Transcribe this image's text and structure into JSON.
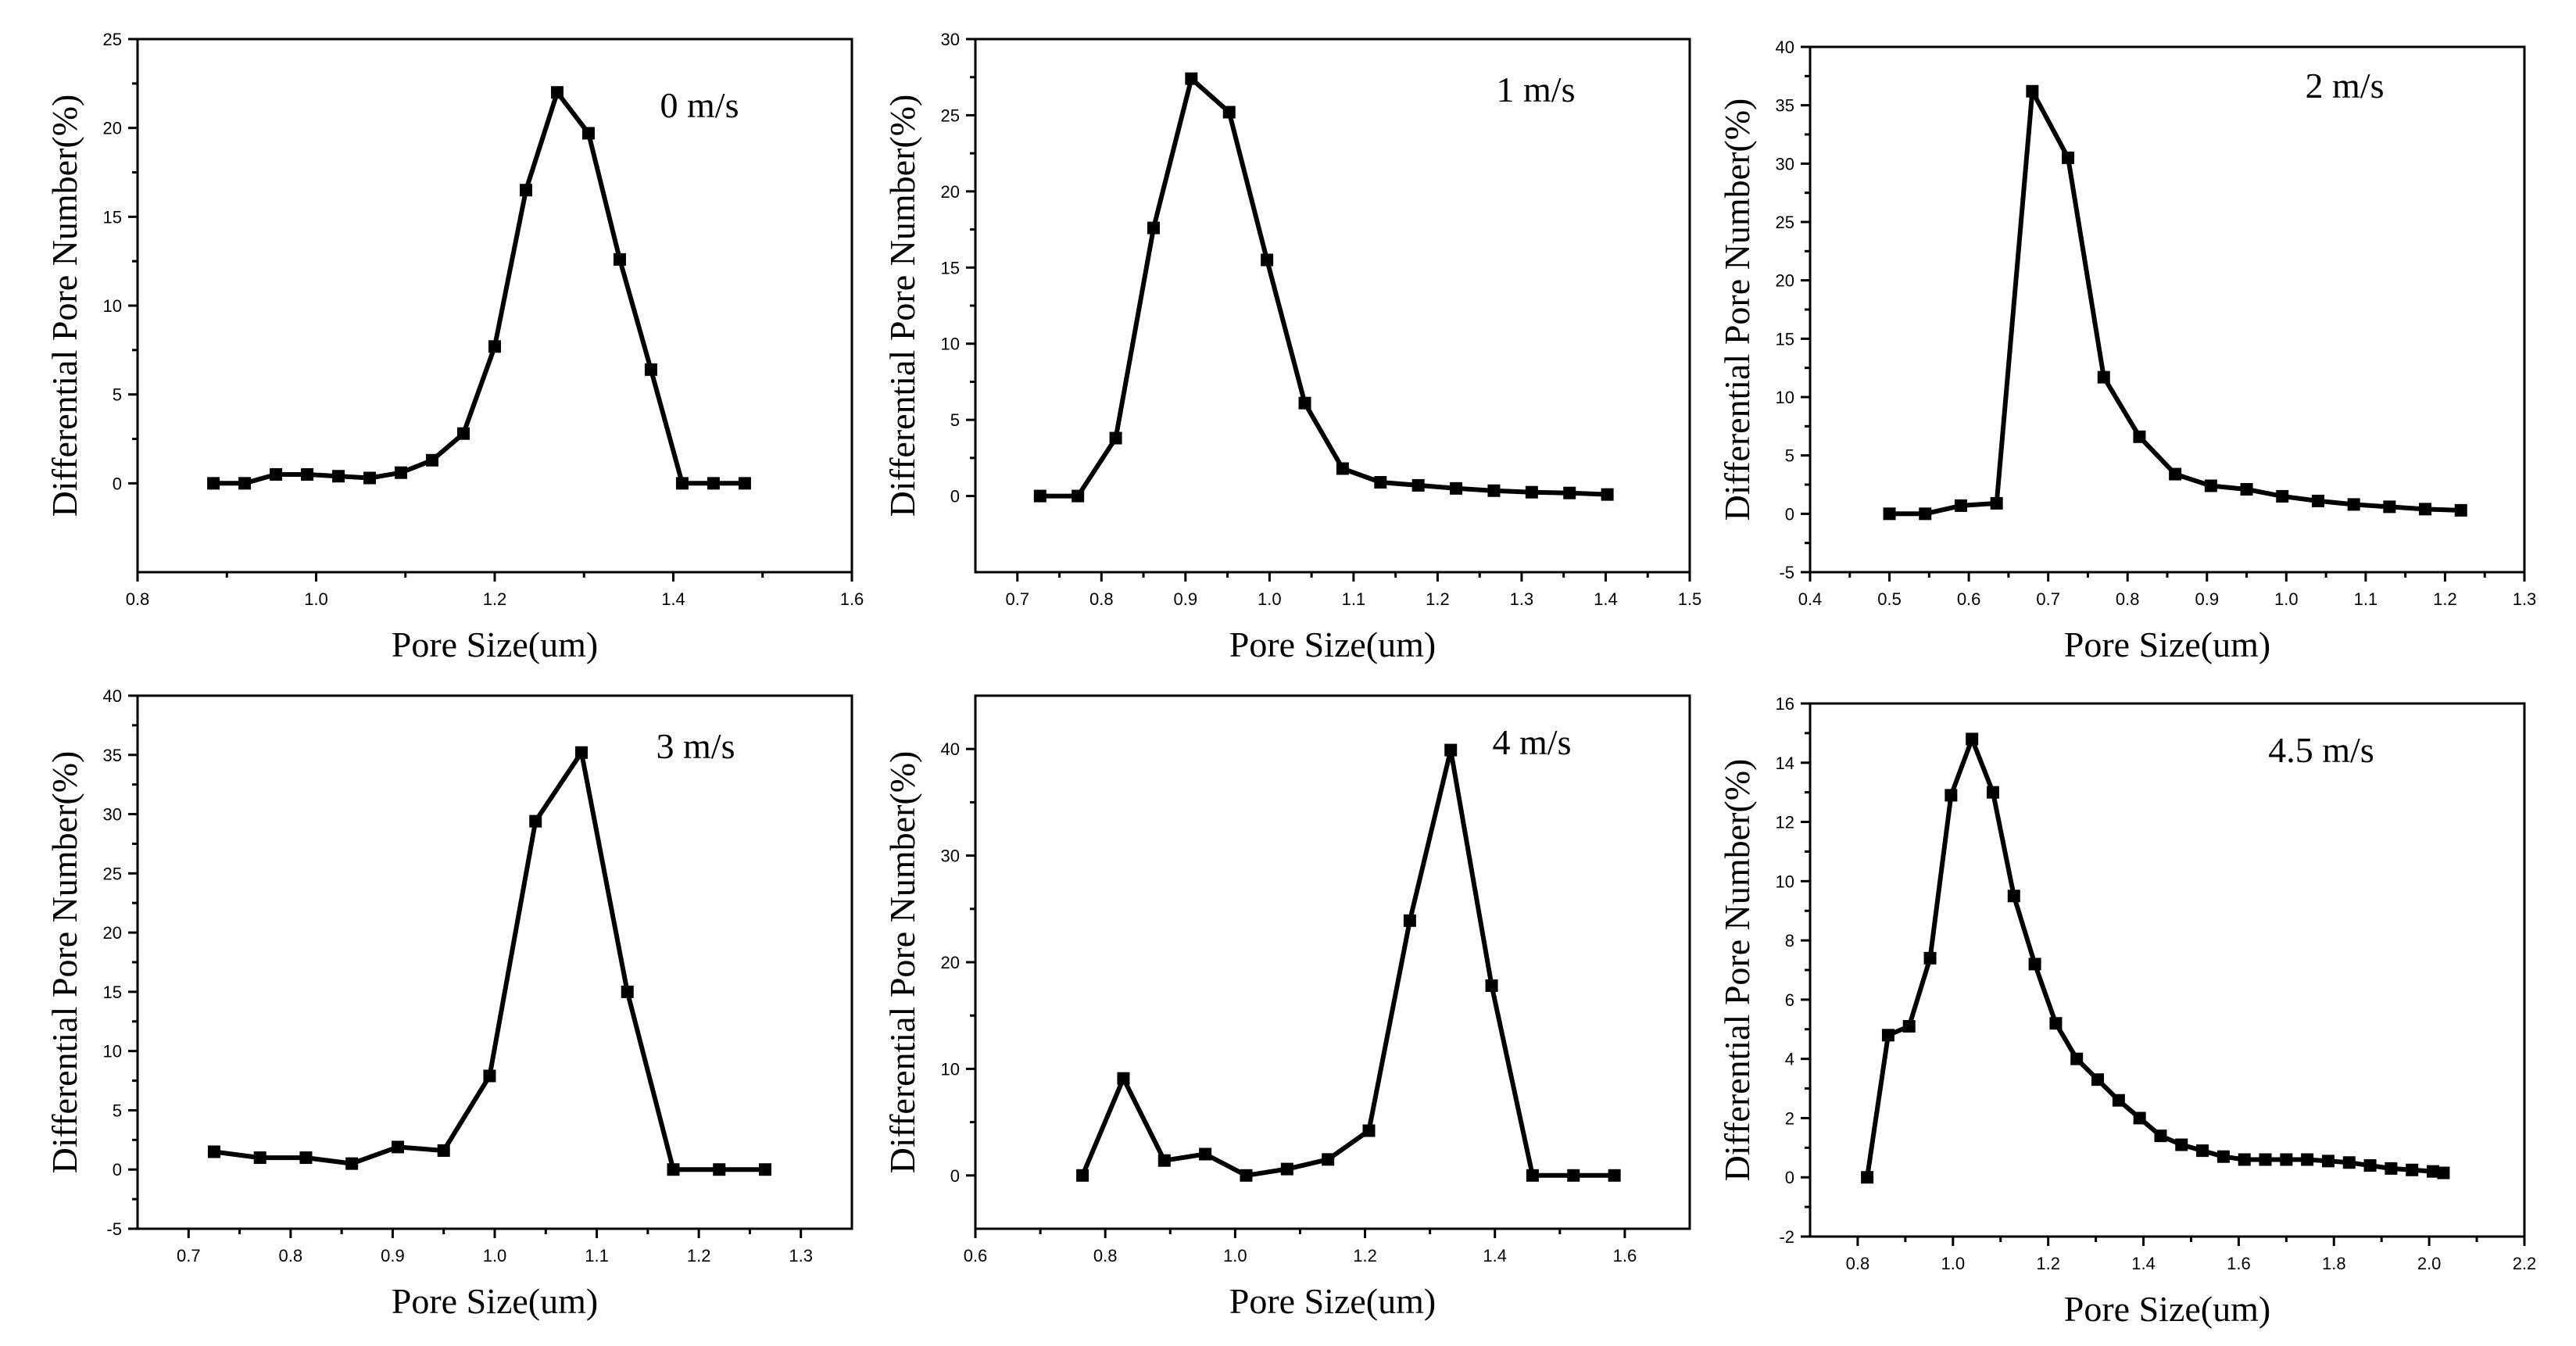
{
  "chart_data": [
    {
      "type": "line",
      "label": "0 m/s",
      "xlabel": "Pore Size(um)",
      "ylabel": "Differential Pore Number(%)",
      "xlim": [
        0.8,
        1.6
      ],
      "ylim": [
        -5,
        25
      ],
      "xticks": [
        0.8,
        1.0,
        1.2,
        1.4,
        1.6
      ],
      "xticklabels": [
        "0.8",
        "1.0",
        "1.2",
        "1.4",
        "1.6"
      ],
      "yticks": [
        0,
        5,
        10,
        15,
        20,
        25
      ],
      "yticklabels": [
        "0",
        "5",
        "10",
        "15",
        "20",
        "25"
      ],
      "x": [
        0.885,
        0.92,
        0.955,
        0.99,
        1.025,
        1.06,
        1.095,
        1.13,
        1.165,
        1.2,
        1.235,
        1.27,
        1.305,
        1.34,
        1.375,
        1.41,
        1.445,
        1.48
      ],
      "y": [
        0,
        0,
        0.5,
        0.5,
        0.4,
        0.3,
        0.6,
        1.3,
        2.8,
        7.7,
        16.5,
        22,
        19.7,
        12.6,
        6.4,
        0,
        0,
        0
      ]
    },
    {
      "type": "line",
      "label": "1 m/s",
      "xlabel": "Pore Size(um)",
      "ylabel": "Differential Pore Number(%)",
      "xlim": [
        0.65,
        1.5
      ],
      "ylim": [
        -5,
        30
      ],
      "xticks": [
        0.7,
        0.8,
        0.9,
        1.0,
        1.1,
        1.2,
        1.3,
        1.4,
        1.5
      ],
      "xticklabels": [
        "0.7",
        "0.8",
        "0.9",
        "1.0",
        "1.1",
        "1.2",
        "1.3",
        "1.4",
        "1.5"
      ],
      "yticks": [
        0,
        5,
        10,
        15,
        20,
        25,
        30
      ],
      "yticklabels": [
        "0",
        "5",
        "10",
        "15",
        "20",
        "25",
        "30"
      ],
      "x": [
        0.727,
        0.772,
        0.817,
        0.862,
        0.907,
        0.952,
        0.997,
        1.042,
        1.087,
        1.132,
        1.177,
        1.222,
        1.267,
        1.312,
        1.357,
        1.402
      ],
      "y": [
        0,
        0,
        3.8,
        17.6,
        27.4,
        25.2,
        15.5,
        6.1,
        1.8,
        0.9,
        0.7,
        0.5,
        0.35,
        0.25,
        0.2,
        0.1
      ]
    },
    {
      "type": "line",
      "label": "2 m/s",
      "xlabel": "Pore Size(um)",
      "ylabel": "Differential Pore Number(%)",
      "xlim": [
        0.4,
        1.3
      ],
      "ylim": [
        -5,
        40
      ],
      "xticks": [
        0.4,
        0.5,
        0.6,
        0.7,
        0.8,
        0.9,
        1.0,
        1.1,
        1.2,
        1.3
      ],
      "xticklabels": [
        "0.4",
        "0.5",
        "0.6",
        "0.7",
        "0.8",
        "0.9",
        "1.0",
        "1.1",
        "1.2",
        "1.3"
      ],
      "yticks": [
        -5,
        0,
        5,
        10,
        15,
        20,
        25,
        30,
        35,
        40
      ],
      "yticklabels": [
        "-5",
        "0",
        "5",
        "10",
        "15",
        "20",
        "25",
        "30",
        "35",
        "40"
      ],
      "x": [
        0.5,
        0.545,
        0.59,
        0.635,
        0.68,
        0.725,
        0.77,
        0.815,
        0.86,
        0.905,
        0.95,
        0.995,
        1.04,
        1.085,
        1.13,
        1.175,
        1.22
      ],
      "y": [
        0,
        0,
        0.7,
        0.9,
        36.2,
        30.5,
        11.7,
        6.6,
        3.4,
        2.4,
        2.1,
        1.5,
        1.1,
        0.8,
        0.6,
        0.4,
        0.3
      ]
    },
    {
      "type": "line",
      "label": "3 m/s",
      "xlabel": "Pore Size(um)",
      "ylabel": "Differential Pore Number(%)",
      "xlim": [
        0.65,
        1.35
      ],
      "ylim": [
        -5,
        40
      ],
      "xticks": [
        0.7,
        0.8,
        0.9,
        1.0,
        1.1,
        1.2,
        1.3
      ],
      "xticklabels": [
        "0.7",
        "0.8",
        "0.9",
        "1.0",
        "1.1",
        "1.2",
        "1.3"
      ],
      "yticks": [
        -5,
        0,
        5,
        10,
        15,
        20,
        25,
        30,
        35,
        40
      ],
      "yticklabels": [
        "-5",
        "0",
        "5",
        "10",
        "15",
        "20",
        "25",
        "30",
        "35",
        "40"
      ],
      "x": [
        0.725,
        0.77,
        0.815,
        0.86,
        0.905,
        0.95,
        0.995,
        1.04,
        1.085,
        1.13,
        1.175,
        1.22,
        1.265
      ],
      "y": [
        1.5,
        1,
        1,
        0.5,
        1.9,
        1.6,
        7.9,
        29.4,
        35.2,
        15,
        0,
        0,
        0
      ]
    },
    {
      "type": "line",
      "label": "4 m/s",
      "xlabel": "Pore Size(um)",
      "ylabel": "Differential Pore Number(%)",
      "xlim": [
        0.6,
        1.7
      ],
      "ylim": [
        -5,
        45
      ],
      "xticks": [
        0.6,
        0.8,
        1.0,
        1.2,
        1.4,
        1.6
      ],
      "xticklabels": [
        "0.6",
        "0.8",
        "1.0",
        "1.2",
        "1.4",
        "1.6"
      ],
      "yticks": [
        0,
        10,
        20,
        30,
        40
      ],
      "yticklabels": [
        "0",
        "10",
        "20",
        "30",
        "40"
      ],
      "x": [
        0.765,
        0.828,
        0.891,
        0.954,
        1.017,
        1.08,
        1.143,
        1.206,
        1.269,
        1.332,
        1.395,
        1.458,
        1.521,
        1.584
      ],
      "y": [
        0,
        9.1,
        1.4,
        2,
        0,
        0.6,
        1.5,
        4.2,
        23.9,
        39.9,
        17.8,
        0,
        0,
        0
      ]
    },
    {
      "type": "line",
      "label": "4.5 m/s",
      "xlabel": "Pore Size(um)",
      "ylabel": "Differential Pore Number(%)",
      "xlim": [
        0.7,
        2.2
      ],
      "ylim": [
        -2,
        16
      ],
      "xticks": [
        0.8,
        1.0,
        1.2,
        1.4,
        1.6,
        1.8,
        2.0,
        2.2
      ],
      "xticklabels": [
        "0.8",
        "1.0",
        "1.2",
        "1.4",
        "1.6",
        "1.8",
        "2.0",
        "2.2"
      ],
      "yticks": [
        -2,
        0,
        2,
        4,
        6,
        8,
        10,
        12,
        14,
        16
      ],
      "yticklabels": [
        "-2",
        "0",
        "2",
        "4",
        "6",
        "8",
        "10",
        "12",
        "14",
        "16"
      ],
      "x": [
        0.82,
        0.864,
        0.908,
        0.952,
        0.996,
        1.04,
        1.084,
        1.128,
        1.172,
        1.216,
        1.26,
        1.304,
        1.348,
        1.392,
        1.436,
        1.48,
        1.524,
        1.568,
        1.612,
        1.656,
        1.7,
        1.744,
        1.788,
        1.832,
        1.876,
        1.92,
        1.964,
        2.008,
        2.03
      ],
      "y": [
        0,
        4.8,
        5.1,
        7.4,
        12.9,
        14.8,
        13,
        9.5,
        7.2,
        5.2,
        4,
        3.3,
        2.6,
        2,
        1.4,
        1.1,
        0.9,
        0.7,
        0.6,
        0.6,
        0.6,
        0.6,
        0.55,
        0.5,
        0.4,
        0.3,
        0.25,
        0.2,
        0.15
      ]
    }
  ]
}
